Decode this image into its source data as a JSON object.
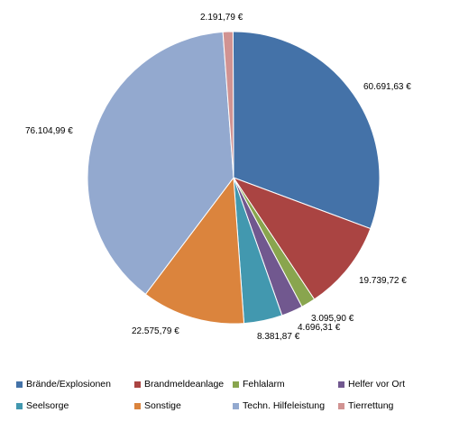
{
  "chart_data": {
    "type": "pie",
    "title": "",
    "start_angle_deg": -0.2,
    "direction": "clockwise",
    "legend_position": "bottom",
    "slices": [
      {
        "name": "Brände/Explosionen",
        "value": 60691.63,
        "label": "60.691,63 €",
        "color": "#4472A8"
      },
      {
        "name": "Brandmeldeanlage",
        "value": 19739.72,
        "label": "19.739,72 €",
        "color": "#AA4442"
      },
      {
        "name": "Fehlalarm",
        "value": 3095.9,
        "label": "3.095,90 €",
        "color": "#89A54E"
      },
      {
        "name": "Helfer vor Ort",
        "value": 4696.31,
        "label": "4.696,31 €",
        "color": "#71588F"
      },
      {
        "name": "Seelsorge",
        "value": 8381.87,
        "label": "8.381,87 €",
        "color": "#4298AF"
      },
      {
        "name": "Sonstige",
        "value": 22575.79,
        "label": "22.575,79 €",
        "color": "#DB843D"
      },
      {
        "name": "Techn. Hilfeleistung",
        "value": 76104.99,
        "label": "76.104,99 €",
        "color": "#93A9CF"
      },
      {
        "name": "Tierrettung",
        "value": 2191.79,
        "label": "2.191,79 €",
        "color": "#D19392"
      }
    ]
  }
}
